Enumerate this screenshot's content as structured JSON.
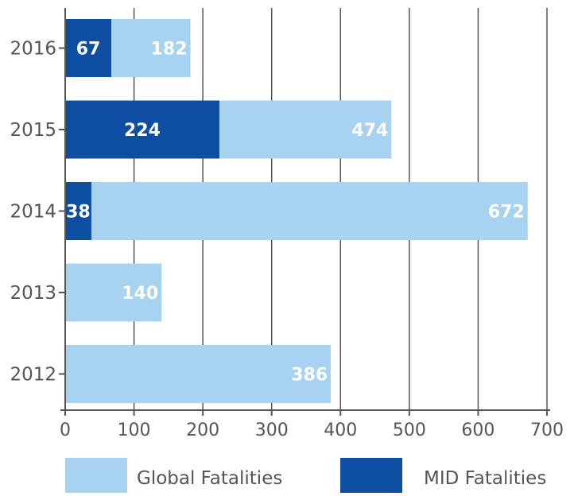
{
  "chart_data": {
    "type": "bar",
    "orientation": "horizontal",
    "stacking": "overlaid",
    "categories": [
      "2016",
      "2015",
      "2014",
      "2013",
      "2012"
    ],
    "series": [
      {
        "name": "Global Fatalities",
        "color": "#a8d3f0",
        "values": [
          182,
          474,
          672,
          140,
          386
        ],
        "labels": [
          "182",
          "474",
          "672",
          "140",
          "386"
        ]
      },
      {
        "name": "MID Fatalities",
        "color": "#0d4ea3",
        "values": [
          67,
          224,
          38,
          null,
          null
        ],
        "labels": [
          "67",
          "224",
          "38",
          "",
          ""
        ]
      }
    ],
    "xlim": [
      0,
      700
    ],
    "xticks": [
      0,
      100,
      200,
      300,
      400,
      500,
      600,
      700
    ],
    "xtick_labels": [
      "0",
      "100",
      "200",
      "300",
      "400",
      "500",
      "600",
      "700"
    ],
    "grid": "vertical",
    "legend_position": "bottom",
    "title": "",
    "xlabel": "",
    "ylabel": ""
  }
}
